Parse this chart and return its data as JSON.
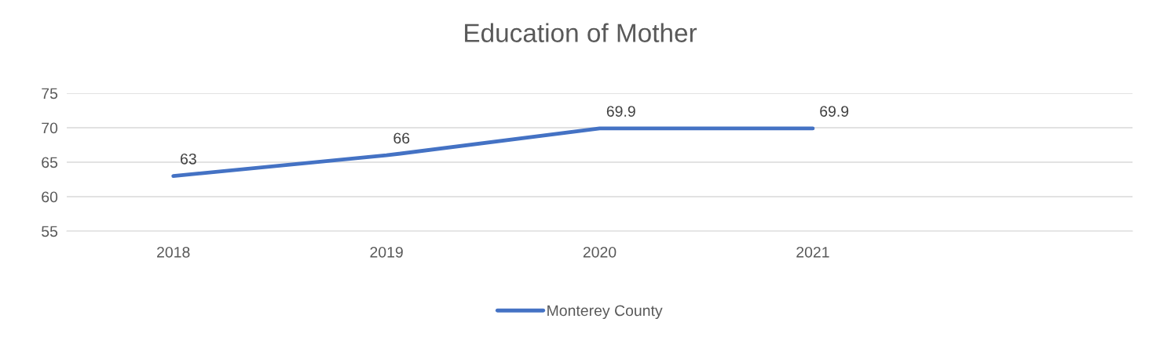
{
  "chart_data": {
    "type": "line",
    "title": "Education of Mother",
    "categories": [
      "2018",
      "2019",
      "2020",
      "2021",
      null
    ],
    "series": [
      {
        "name": "Monterey County",
        "color": "#4472c4",
        "values": [
          63,
          66,
          69.9,
          69.9,
          null
        ]
      }
    ],
    "ylim": [
      55,
      75
    ],
    "yticks": [
      55,
      60,
      65,
      70,
      75
    ],
    "grid": "y",
    "legend": "bottom",
    "data_labels": true,
    "marker": "none",
    "line_style": "solid"
  }
}
